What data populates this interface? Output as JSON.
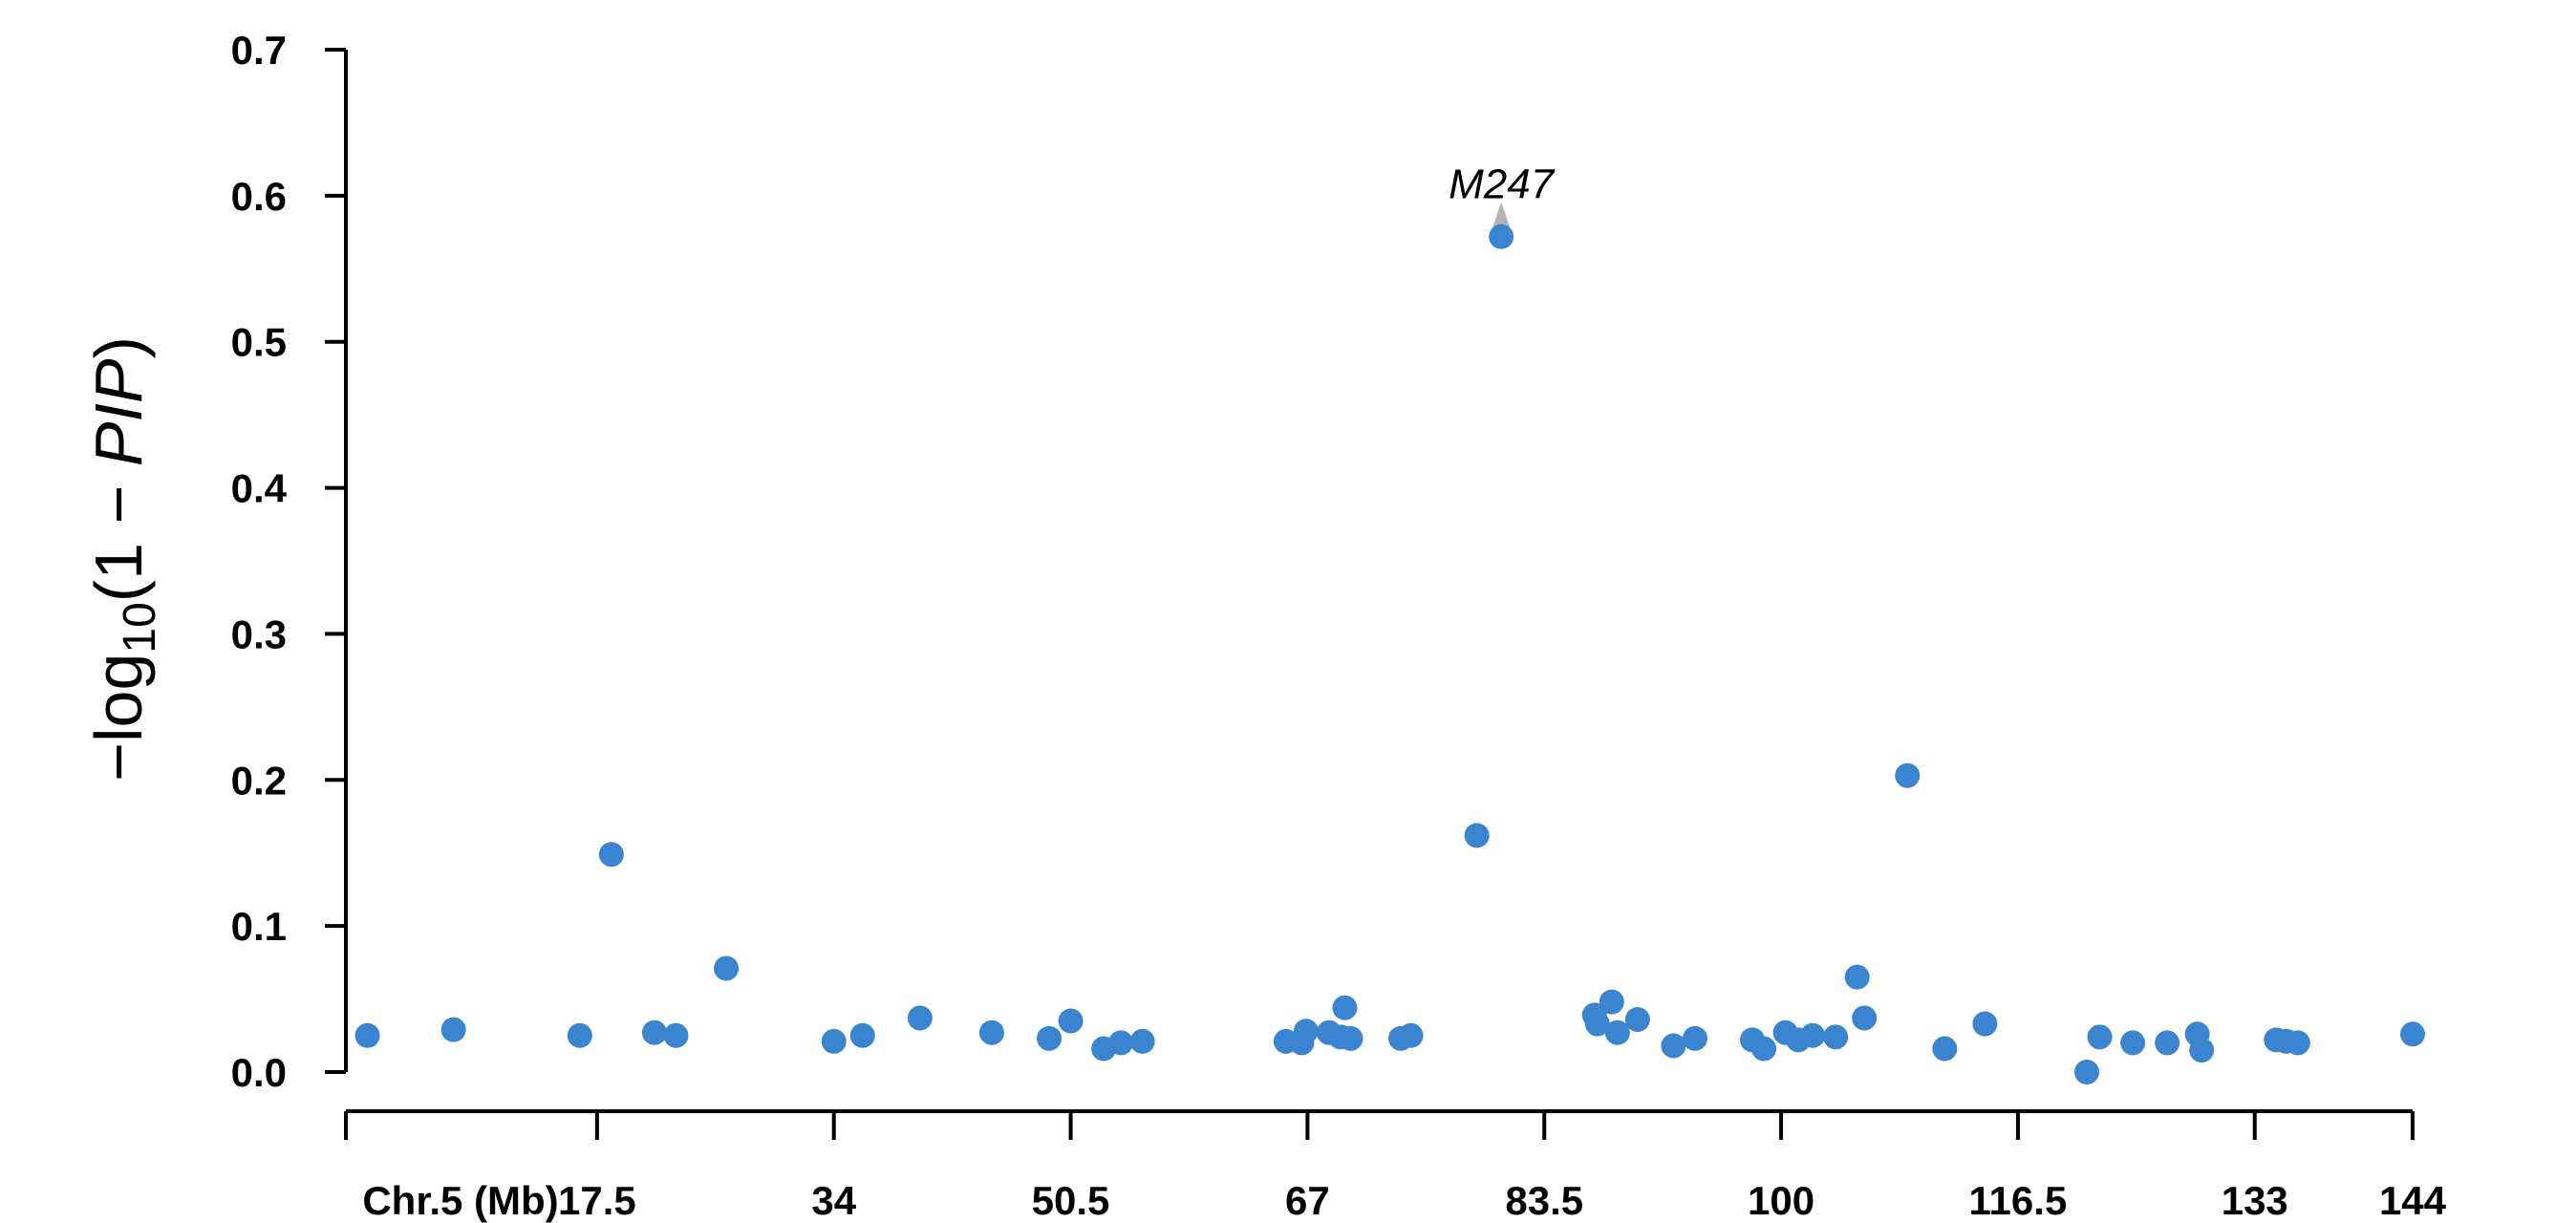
{
  "chart_data": {
    "type": "scatter",
    "title": "",
    "xlabel": "",
    "ylabel": {
      "prefix": "−log",
      "subscript": "10",
      "body": "(1 − ",
      "italic": "PIP",
      "suffix": ")"
    },
    "xlim": [
      0,
      145
    ],
    "ylim": [
      0,
      0.7
    ],
    "x_ticks": [
      0,
      17.5,
      34,
      50.5,
      67,
      83.5,
      100,
      116.5,
      133,
      144
    ],
    "x_tick_labels": [
      "Chr.5 (Mb)",
      "17.5",
      "34",
      "50.5",
      "67",
      "83.5",
      "100",
      "116.5",
      "133",
      "144"
    ],
    "y_ticks": [
      0.0,
      0.1,
      0.2,
      0.3,
      0.4,
      0.5,
      0.6,
      0.7
    ],
    "y_tick_labels": [
      "0.0",
      "0.1",
      "0.2",
      "0.3",
      "0.4",
      "0.5",
      "0.6",
      "0.7"
    ],
    "grid": false,
    "point_color": "#3a84d0",
    "annotation_color": "#b4b4b4",
    "annotations": [
      {
        "text": "M247",
        "x": 80.5,
        "y": 0.572
      }
    ],
    "points": [
      {
        "x": 1.5,
        "y": 0.025
      },
      {
        "x": 7.5,
        "y": 0.029
      },
      {
        "x": 16.3,
        "y": 0.025
      },
      {
        "x": 18.5,
        "y": 0.149
      },
      {
        "x": 21.5,
        "y": 0.027
      },
      {
        "x": 23.0,
        "y": 0.025
      },
      {
        "x": 26.5,
        "y": 0.071
      },
      {
        "x": 34.0,
        "y": 0.021
      },
      {
        "x": 36.0,
        "y": 0.025
      },
      {
        "x": 40.0,
        "y": 0.037
      },
      {
        "x": 45.0,
        "y": 0.027
      },
      {
        "x": 49.0,
        "y": 0.023
      },
      {
        "x": 50.5,
        "y": 0.035
      },
      {
        "x": 52.8,
        "y": 0.016
      },
      {
        "x": 54.0,
        "y": 0.02
      },
      {
        "x": 55.5,
        "y": 0.021
      },
      {
        "x": 65.5,
        "y": 0.021
      },
      {
        "x": 66.6,
        "y": 0.02
      },
      {
        "x": 66.9,
        "y": 0.028
      },
      {
        "x": 68.5,
        "y": 0.027
      },
      {
        "x": 69.3,
        "y": 0.024
      },
      {
        "x": 69.6,
        "y": 0.044
      },
      {
        "x": 70.0,
        "y": 0.023
      },
      {
        "x": 73.5,
        "y": 0.023
      },
      {
        "x": 74.2,
        "y": 0.025
      },
      {
        "x": 78.8,
        "y": 0.162
      },
      {
        "x": 80.5,
        "y": 0.572
      },
      {
        "x": 87.0,
        "y": 0.039
      },
      {
        "x": 87.2,
        "y": 0.033
      },
      {
        "x": 88.2,
        "y": 0.048
      },
      {
        "x": 88.6,
        "y": 0.027
      },
      {
        "x": 90.0,
        "y": 0.036
      },
      {
        "x": 92.5,
        "y": 0.018
      },
      {
        "x": 94.0,
        "y": 0.023
      },
      {
        "x": 98.0,
        "y": 0.022
      },
      {
        "x": 98.8,
        "y": 0.016
      },
      {
        "x": 100.3,
        "y": 0.027
      },
      {
        "x": 101.2,
        "y": 0.022
      },
      {
        "x": 102.2,
        "y": 0.025
      },
      {
        "x": 103.8,
        "y": 0.024
      },
      {
        "x": 105.3,
        "y": 0.065
      },
      {
        "x": 105.8,
        "y": 0.037
      },
      {
        "x": 108.8,
        "y": 0.203
      },
      {
        "x": 111.4,
        "y": 0.016
      },
      {
        "x": 114.2,
        "y": 0.033
      },
      {
        "x": 121.3,
        "y": 0.0
      },
      {
        "x": 122.2,
        "y": 0.024
      },
      {
        "x": 124.5,
        "y": 0.02
      },
      {
        "x": 126.9,
        "y": 0.02
      },
      {
        "x": 129.0,
        "y": 0.026
      },
      {
        "x": 129.3,
        "y": 0.015
      },
      {
        "x": 134.5,
        "y": 0.022
      },
      {
        "x": 135.2,
        "y": 0.021
      },
      {
        "x": 136.0,
        "y": 0.02
      },
      {
        "x": 144.0,
        "y": 0.026
      }
    ]
  }
}
